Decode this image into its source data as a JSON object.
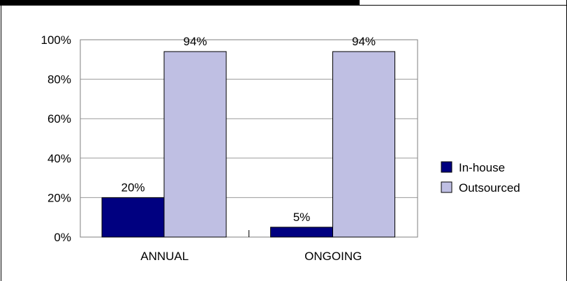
{
  "chart_data": {
    "type": "bar",
    "categories": [
      "ANNUAL",
      "ONGOING"
    ],
    "series": [
      {
        "name": "In-house",
        "values": [
          20,
          5
        ],
        "color": "#000080"
      },
      {
        "name": "Outsourced",
        "values": [
          94,
          94
        ],
        "color": "#bfbfe3"
      }
    ],
    "data_labels": [
      [
        "20%",
        "5%"
      ],
      [
        "94%",
        "94%"
      ]
    ],
    "yticks": [
      "0%",
      "20%",
      "40%",
      "60%",
      "80%",
      "100%"
    ],
    "ylim": [
      0,
      100
    ],
    "grid": true,
    "legend": "right"
  }
}
